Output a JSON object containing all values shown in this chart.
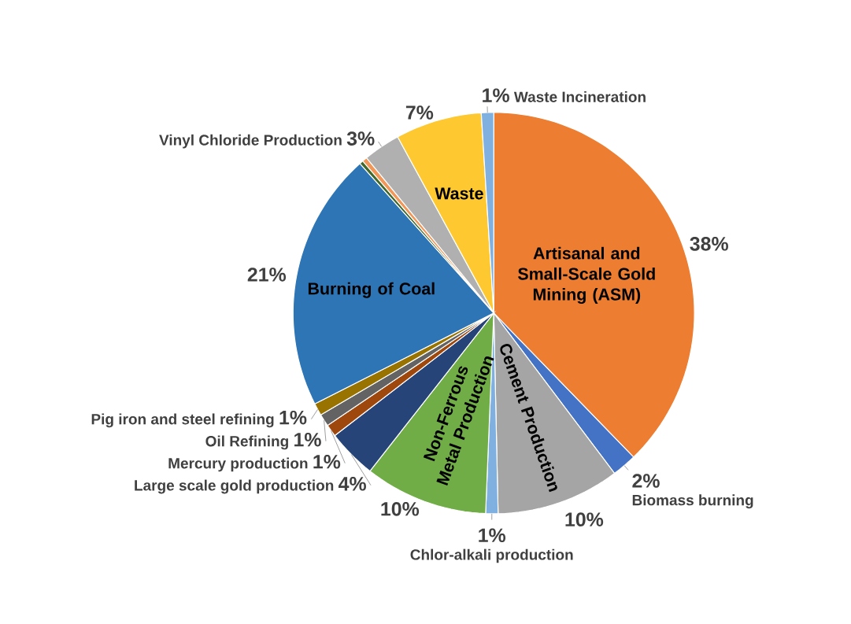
{
  "chart_data": {
    "type": "pie",
    "categories": [
      "Artisanal and Small-Scale Gold Mining (ASM)",
      "Biomass burning",
      "Cement Production",
      "Chlor-alkali production",
      "Non-Ferrous Metal Production",
      "Large scale gold production",
      "Mercury production",
      "Oil Refining",
      "Pig iron and steel refining",
      "Burning of Coal",
      null,
      null,
      "Vinyl Chloride Production",
      "Waste",
      "Waste Incineration"
    ],
    "values": [
      38,
      2,
      10,
      1,
      10,
      4,
      1,
      1,
      1,
      21,
      0.3,
      0.4,
      3,
      7,
      1
    ],
    "value_labels": [
      "38%",
      "2%",
      "10%",
      "1%",
      "10%",
      "4%",
      "1%",
      "1%",
      "1%",
      "21%",
      null,
      null,
      "3%",
      "7%",
      "1%"
    ],
    "colors": [
      "#ed7d31",
      "#4472c4",
      "#a5a5a5",
      "#7fb0e0",
      "#70ad47",
      "#264478",
      "#9e480e",
      "#636363",
      "#997300",
      "#2e75b6",
      "#43682b",
      "#f1975a",
      "#b0b0b0",
      "#fdc830",
      "#7fb0e0"
    ]
  }
}
